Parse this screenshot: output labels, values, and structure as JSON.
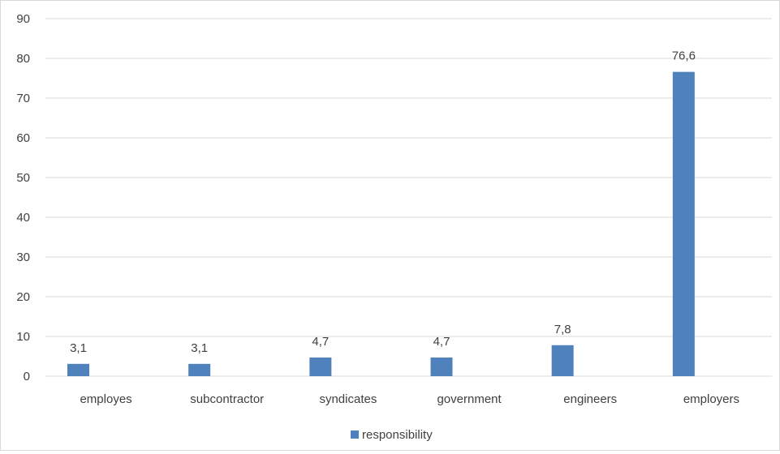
{
  "chart_data": {
    "type": "bar",
    "categories": [
      "employes",
      "subcontractor",
      "syndicates",
      "government",
      "engineers",
      "employers"
    ],
    "series": [
      {
        "name": "responsibility",
        "values": [
          3.1,
          3.1,
          4.7,
          4.7,
          7.8,
          76.6
        ],
        "labels": [
          "3,1",
          "3,1",
          "4,7",
          "4,7",
          "7,8",
          "76,6"
        ]
      }
    ],
    "ylim": [
      0,
      90
    ],
    "yticks": [
      "0",
      "10",
      "20",
      "30",
      "40",
      "50",
      "60",
      "70",
      "80",
      "90"
    ],
    "grid": true,
    "legend": "bottom-center",
    "colors": {
      "bar": "#4f81bd",
      "grid": "#d9d9d9",
      "text": "#404040"
    }
  }
}
